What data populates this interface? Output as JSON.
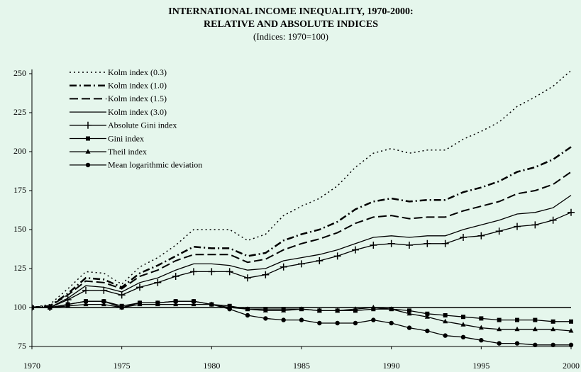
{
  "chart_data": {
    "type": "line",
    "title": [
      "INTERNATIONAL INCOME INEQUALITY, 1970-2000:",
      "RELATIVE AND ABSOLUTE INDICES"
    ],
    "subtitle": "(Indices: 1970=100)",
    "x": [
      1970,
      1971,
      1972,
      1973,
      1974,
      1975,
      1976,
      1977,
      1978,
      1979,
      1980,
      1981,
      1982,
      1983,
      1984,
      1985,
      1986,
      1987,
      1988,
      1989,
      1990,
      1991,
      1992,
      1993,
      1994,
      1995,
      1996,
      1997,
      1998,
      1999,
      2000
    ],
    "xlim": [
      1970,
      2000
    ],
    "xticks": [
      1970,
      1975,
      1980,
      1985,
      1990,
      1995,
      2000
    ],
    "ylim": [
      75,
      250
    ],
    "yticks": [
      75,
      100,
      125,
      150,
      175,
      200,
      225,
      250
    ],
    "reference_line": 100,
    "legend": "upper-left",
    "series": [
      {
        "name": "Kolm index (0.3)",
        "color": "#000000",
        "style": "dotted",
        "marker": "none",
        "values": [
          100,
          102,
          112,
          123,
          122,
          115,
          126,
          132,
          140,
          150,
          150,
          150,
          143,
          147,
          159,
          165,
          170,
          178,
          190,
          199,
          202,
          199,
          201,
          201,
          208,
          213,
          219,
          229,
          235,
          242,
          252
        ]
      },
      {
        "name": "Kolm index (1.0)",
        "color": "#000000",
        "style": "dashdot",
        "marker": "none",
        "values": [
          100,
          101,
          109,
          119,
          118,
          113,
          122,
          127,
          133,
          139,
          138,
          138,
          133,
          135,
          143,
          147,
          150,
          155,
          163,
          168,
          170,
          168,
          169,
          169,
          174,
          177,
          181,
          187,
          190,
          195,
          203
        ]
      },
      {
        "name": "Kolm index (1.5)",
        "color": "#000000",
        "style": "dashed",
        "marker": "none",
        "values": [
          100,
          101,
          108,
          117,
          116,
          112,
          120,
          124,
          130,
          134,
          134,
          134,
          129,
          131,
          137,
          141,
          144,
          148,
          154,
          158,
          159,
          157,
          158,
          158,
          162,
          165,
          168,
          173,
          175,
          179,
          187
        ]
      },
      {
        "name": "Kolm index (3.0)",
        "color": "#000000",
        "style": "solid",
        "marker": "none",
        "values": [
          100,
          100,
          106,
          114,
          113,
          110,
          116,
          119,
          124,
          128,
          128,
          127,
          124,
          125,
          130,
          132,
          134,
          137,
          141,
          145,
          146,
          145,
          146,
          146,
          150,
          153,
          156,
          160,
          161,
          164,
          172
        ]
      },
      {
        "name": "Absolute Gini index",
        "color": "#000000",
        "style": "solid",
        "marker": "plus",
        "values": [
          100,
          100,
          105,
          111,
          111,
          108,
          113,
          116,
          120,
          123,
          123,
          123,
          119,
          121,
          126,
          128,
          130,
          133,
          137,
          140,
          141,
          140,
          141,
          141,
          145,
          146,
          149,
          152,
          153,
          156,
          161
        ]
      },
      {
        "name": "Gini index",
        "color": "#000000",
        "style": "solid",
        "marker": "square",
        "values": [
          100,
          100,
          102,
          104,
          104,
          101,
          103,
          103,
          104,
          104,
          102,
          101,
          99,
          99,
          99,
          99,
          98,
          98,
          98,
          99,
          99,
          98,
          96,
          95,
          94,
          93,
          92,
          92,
          92,
          91,
          91
        ]
      },
      {
        "name": "Theil index",
        "color": "#000000",
        "style": "solid",
        "marker": "triangle",
        "values": [
          100,
          100,
          101,
          102,
          102,
          100,
          102,
          102,
          102,
          102,
          102,
          100,
          99,
          98,
          98,
          99,
          98,
          98,
          99,
          100,
          99,
          96,
          94,
          91,
          89,
          87,
          86,
          86,
          86,
          86,
          85
        ]
      },
      {
        "name": "Mean logarithmic deviation",
        "color": "#000000",
        "style": "solid",
        "marker": "circle",
        "values": [
          100,
          100,
          102,
          104,
          104,
          100,
          103,
          103,
          104,
          104,
          102,
          99,
          95,
          93,
          92,
          92,
          90,
          90,
          90,
          92,
          90,
          87,
          85,
          82,
          81,
          79,
          77,
          77,
          76,
          76,
          76
        ]
      }
    ]
  }
}
